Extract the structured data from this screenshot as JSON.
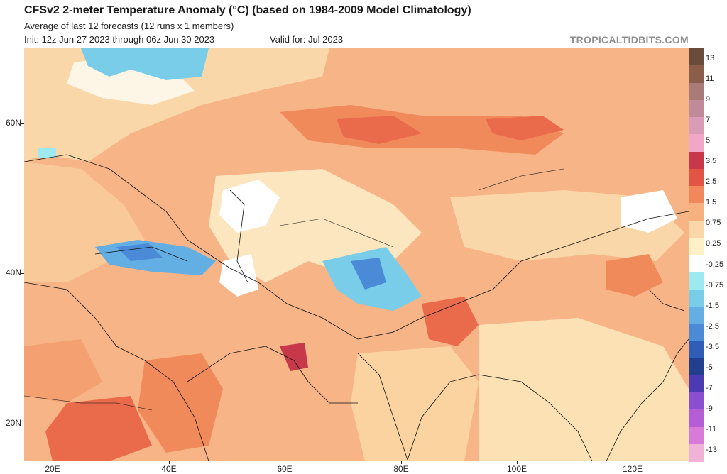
{
  "header": {
    "title": "CFSv2 2-meter Temperature Anomaly (°C) (based on 1984-2009 Model Climatology)",
    "subtitle": "Average of last 12 forecasts (12 runs x 1 members)",
    "init": "Init: 12z Jun 27 2023 through 06z Jun 30 2023",
    "valid": "Valid for: Jul 2023",
    "brand": "TROPICALTIDBITS.COM"
  },
  "map": {
    "lat_labels": [
      "60N",
      "40N",
      "20N"
    ],
    "lon_labels": [
      "20E",
      "40E",
      "60E",
      "80E",
      "100E",
      "120E"
    ]
  },
  "colorbar": {
    "labels": [
      "13",
      "11",
      "9",
      "7",
      "5",
      "3.5",
      "2.5",
      "1.5",
      "0.75",
      "0.25",
      "-0.25",
      "-0.75",
      "-1.5",
      "-2.5",
      "-3.5",
      "-5",
      "-7",
      "-9",
      "-11",
      "-13"
    ],
    "colors": [
      "#6b4b3a",
      "#8b5e4c",
      "#a87a78",
      "#c08a9a",
      "#d99bb6",
      "#f2a7c8",
      "#c7384a",
      "#e25544",
      "#f0885c",
      "#f7b080",
      "#fad7a8",
      "#fdf1c8",
      "#ffffff",
      "#9ceaf0",
      "#79cde8",
      "#63aee3",
      "#4a8ad6",
      "#2f5db8",
      "#223f8f",
      "#4b3ab2",
      "#8a4ed0",
      "#b45ed6",
      "#d87ad8",
      "#f1b2d8"
    ]
  }
}
